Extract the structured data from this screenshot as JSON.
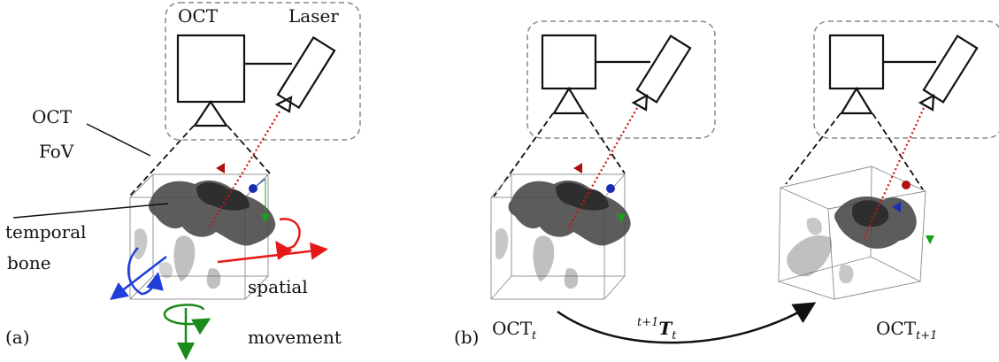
{
  "panel_a": {
    "panel_label": "(a)",
    "oct_label": "OCT",
    "laser_label": "Laser",
    "fov_label_line1": "OCT",
    "fov_label_line2": "FoV",
    "bone_label_line1": "temporal",
    "bone_label_line2": "bone",
    "movement_label_line1": "spatial",
    "movement_label_line2": "movement"
  },
  "panel_b": {
    "panel_label": "(b)",
    "oct_t_base": "OCT",
    "oct_t_sub": "t",
    "oct_t1_base": "OCT",
    "oct_t1_sub": "t+1",
    "transform_sup": "t+1",
    "transform_base": "T",
    "transform_sub": "t"
  },
  "colors": {
    "laser_beam": "#d01010",
    "rotation_x": "#e81818",
    "rotation_y": "#1f3fd8",
    "rotation_z": "#1a8a1a",
    "marker_red": "#b01010",
    "marker_blue": "#1a2fb0",
    "marker_green": "#18a018",
    "frame_dashed": "#888888",
    "tissue": "#4a4a4a"
  }
}
